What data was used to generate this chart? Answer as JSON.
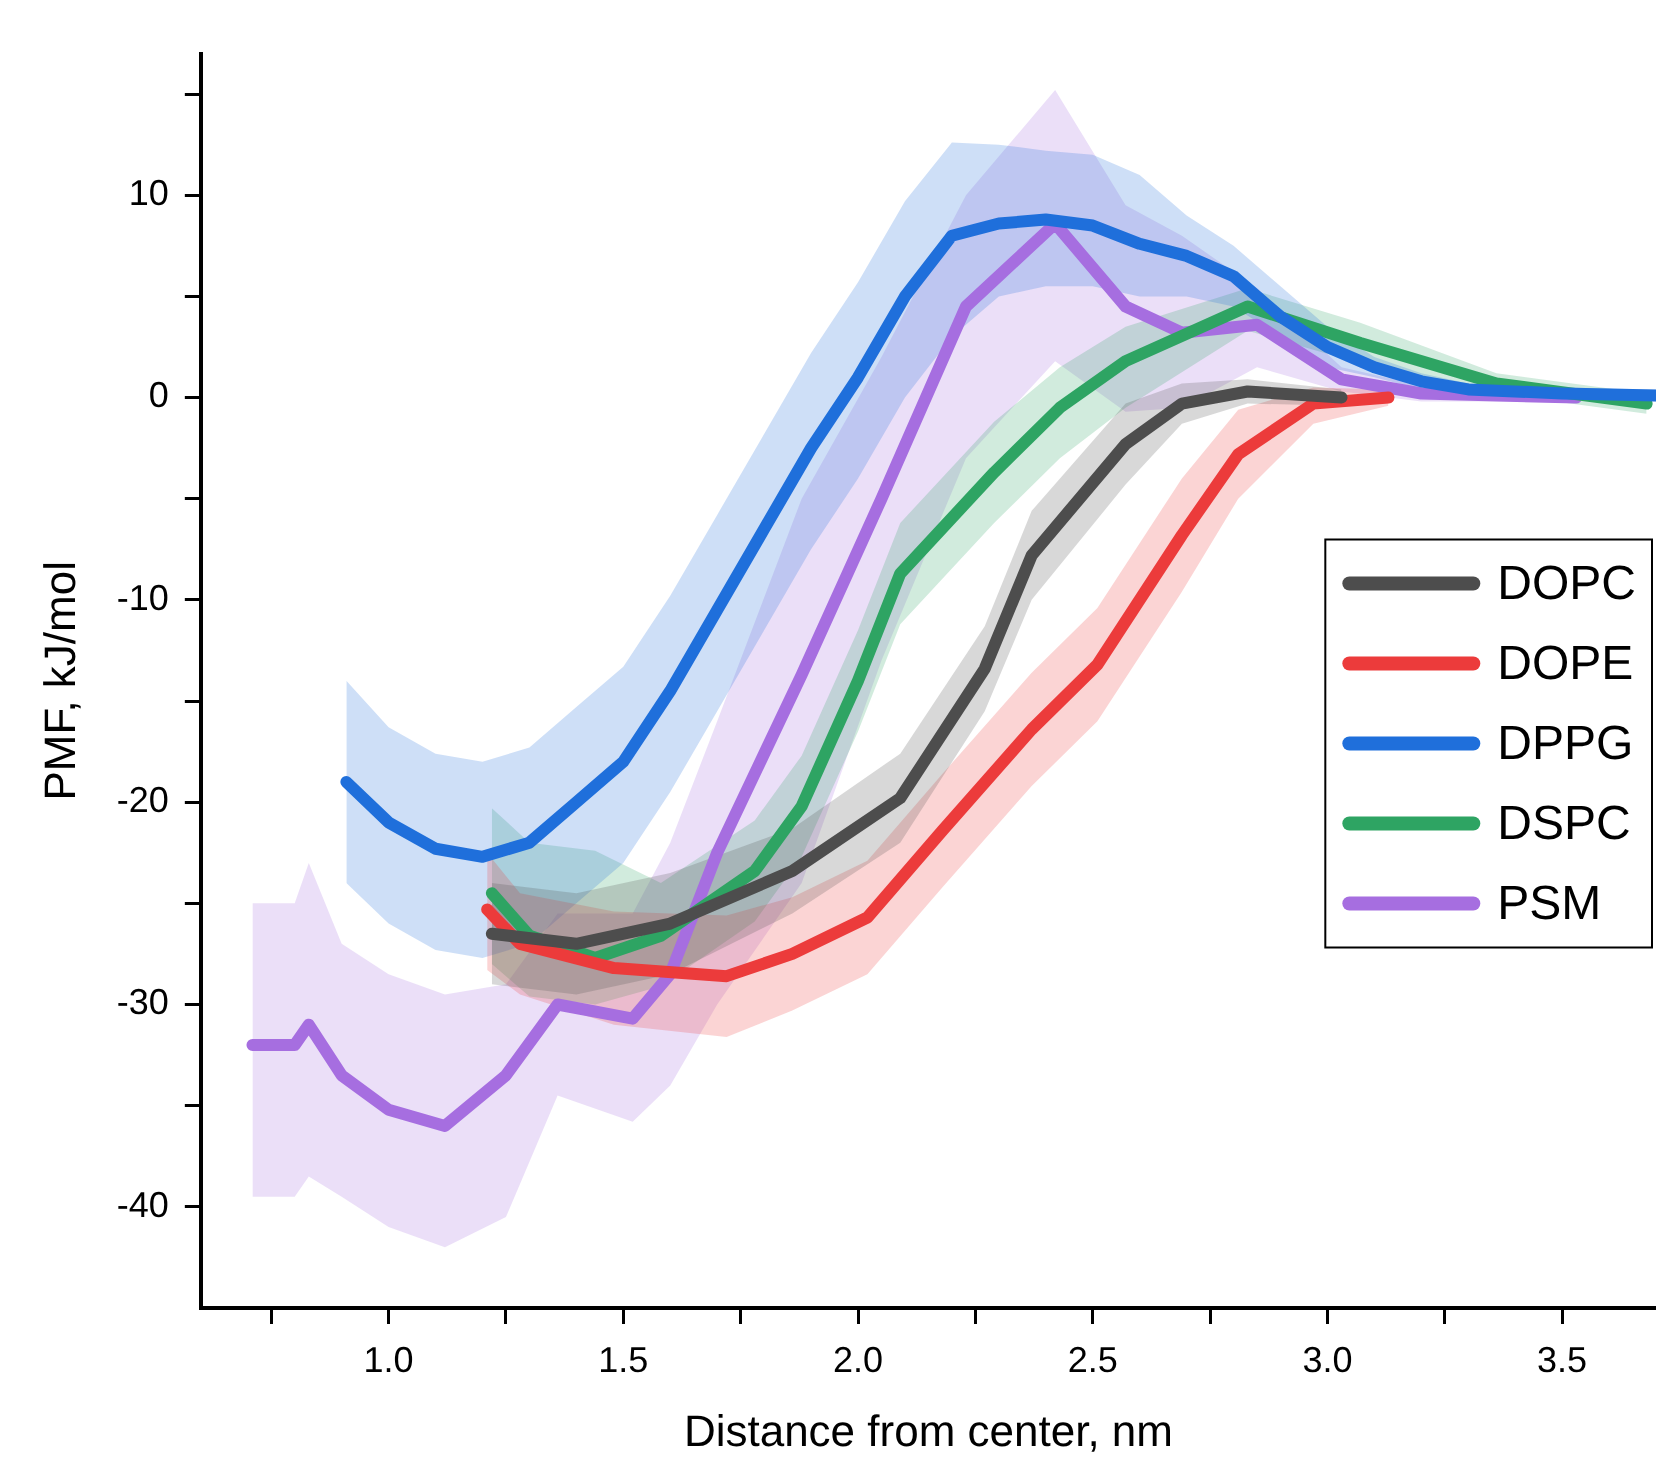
{
  "chart_data": {
    "type": "line",
    "xlabel": "Distance from center, nm",
    "ylabel": "PMF, kJ/mol",
    "xlim": [
      0.6,
      3.7
    ],
    "ylim": [
      -45,
      17
    ],
    "xticks": [
      {
        "value": 0.75,
        "label": null
      },
      {
        "value": 1.0,
        "label": "1.0"
      },
      {
        "value": 1.25,
        "label": null
      },
      {
        "value": 1.5,
        "label": "1.5"
      },
      {
        "value": 1.75,
        "label": null
      },
      {
        "value": 2.0,
        "label": "2.0"
      },
      {
        "value": 2.25,
        "label": null
      },
      {
        "value": 2.5,
        "label": "2.5"
      },
      {
        "value": 2.75,
        "label": null
      },
      {
        "value": 3.0,
        "label": "3.0"
      },
      {
        "value": 3.25,
        "label": null
      },
      {
        "value": 3.5,
        "label": "3.5"
      }
    ],
    "yticks": [
      -40,
      {
        "value": -35,
        "label": null
      },
      -30,
      {
        "value": -25,
        "label": null
      },
      -20,
      {
        "value": -15,
        "label": null
      },
      -10,
      {
        "value": -5,
        "label": null
      },
      0,
      {
        "value": 5,
        "label": null
      },
      10,
      {
        "value": 15,
        "label": null
      }
    ],
    "legend": "right",
    "marker": "none",
    "line_style": "solid",
    "series": [
      {
        "name": "DOPC",
        "color": "#4d4d4d",
        "x": [
          1.22,
          1.4,
          1.6,
          1.86,
          2.09,
          2.27,
          2.37,
          2.57,
          2.69,
          2.83,
          3.03
        ],
        "values": [
          -26.5,
          -27,
          -26,
          -23.4,
          -19.8,
          -13.4,
          -7.8,
          -2.3,
          -0.3,
          0.3,
          0
        ],
        "lower": [
          -29,
          -29.5,
          -28.5,
          -25.5,
          -22,
          -15.5,
          -10,
          -4.3,
          -1.3,
          -0.3,
          -0.4
        ],
        "upper": [
          -24,
          -24.5,
          -23.5,
          -21.3,
          -17.6,
          -11.3,
          -5.6,
          -0.3,
          0.7,
          0.9,
          0.4
        ]
      },
      {
        "name": "DOPE",
        "color": "#ec3b3b",
        "x": [
          1.21,
          1.28,
          1.48,
          1.72,
          1.86,
          2.02,
          2.18,
          2.37,
          2.51,
          2.69,
          2.81,
          2.97,
          3.13
        ],
        "values": [
          -25.3,
          -27,
          -28.2,
          -28.6,
          -27.5,
          -25.7,
          -21.4,
          -16.4,
          -13.2,
          -6.8,
          -2.8,
          -0.3,
          0
        ],
        "lower": [
          -28.3,
          -29.5,
          -31,
          -31.6,
          -30.3,
          -28.5,
          -24.2,
          -19.2,
          -16,
          -9.6,
          -5,
          -1.3,
          -0.4
        ],
        "upper": [
          -22.5,
          -24.5,
          -25.4,
          -25.6,
          -24.7,
          -22.9,
          -18.6,
          -13.6,
          -10.4,
          -4,
          -0.6,
          0.5,
          0.4
        ]
      },
      {
        "name": "DPPG",
        "color": "#1f6fdb",
        "x": [
          0.91,
          1.0,
          1.1,
          1.2,
          1.3,
          1.4,
          1.5,
          1.6,
          1.7,
          1.8,
          1.9,
          2.0,
          2.1,
          2.2,
          2.3,
          2.4,
          2.5,
          2.6,
          2.7,
          2.8,
          2.9,
          3.0,
          3.1,
          3.2,
          3.3,
          3.5,
          3.7
        ],
        "values": [
          -19,
          -21,
          -22.3,
          -22.7,
          -22,
          -20,
          -18,
          -14.5,
          -10.5,
          -6.5,
          -2.5,
          1,
          5,
          8,
          8.6,
          8.8,
          8.5,
          7.6,
          7,
          6,
          4,
          2.5,
          1.5,
          0.8,
          0.4,
          0.2,
          0.1
        ],
        "lower": [
          -24,
          -26,
          -27.3,
          -27.7,
          -27,
          -25,
          -23,
          -19.5,
          -15.5,
          -11.5,
          -7.5,
          -4,
          0,
          3,
          5,
          5.5,
          5.5,
          5,
          5,
          4.5,
          3,
          1.5,
          1,
          0.4,
          0.1,
          -0.1,
          -0.2
        ],
        "upper": [
          -14,
          -16.3,
          -17.6,
          -18,
          -17.3,
          -15.3,
          -13.3,
          -9.8,
          -5.8,
          -1.8,
          2.2,
          5.7,
          9.7,
          12.6,
          12.5,
          12.2,
          12,
          11,
          9,
          7.5,
          5.5,
          3.5,
          2,
          1.2,
          0.7,
          0.5,
          0.4
        ]
      },
      {
        "name": "DSPC",
        "color": "#2ea463",
        "x": [
          1.22,
          1.3,
          1.44,
          1.58,
          1.78,
          1.88,
          2.0,
          2.09,
          2.29,
          2.43,
          2.57,
          2.83,
          3.07,
          3.36,
          3.68
        ],
        "values": [
          -24.5,
          -26.6,
          -27.7,
          -26.6,
          -23.4,
          -20.2,
          -14,
          -8.7,
          -3.7,
          -0.5,
          1.8,
          4.5,
          2.7,
          0.7,
          -0.3
        ],
        "lower": [
          -28,
          -29.6,
          -30,
          -29.1,
          -25.9,
          -22.7,
          -16.5,
          -11.2,
          -6.2,
          -3,
          -0.5,
          3.3,
          1.7,
          0.2,
          -0.8
        ],
        "upper": [
          -20.3,
          -22,
          -22.4,
          -24,
          -20.9,
          -17.7,
          -11.5,
          -6.2,
          -1.2,
          1.5,
          3.5,
          5.4,
          3.7,
          1.2,
          0.2
        ]
      },
      {
        "name": "PSM",
        "color": "#a66ee0",
        "x": [
          0.71,
          0.8,
          0.83,
          0.9,
          1.0,
          1.12,
          1.25,
          1.36,
          1.52,
          1.6,
          1.7,
          1.88,
          2.05,
          2.23,
          2.42,
          2.57,
          2.69,
          2.85,
          3.03,
          3.2,
          3.53
        ],
        "values": [
          -32,
          -32,
          -31,
          -33.5,
          -35.2,
          -36,
          -33.5,
          -30,
          -30.7,
          -28.5,
          -22.5,
          -13.7,
          -5,
          4.5,
          8.6,
          4.5,
          3.2,
          3.6,
          0.9,
          0.2,
          0
        ],
        "lower": [
          -39.5,
          -39.5,
          -38.5,
          -39.5,
          -41,
          -42,
          -40.5,
          -34.5,
          -35.8,
          -34,
          -30,
          -24,
          -13,
          -3,
          1.8,
          -0.7,
          -0.5,
          1.5,
          0.3,
          -0.2,
          -0.2
        ],
        "upper": [
          -25,
          -25,
          -23,
          -27,
          -28.5,
          -29.5,
          -29,
          -25.5,
          -25.5,
          -22,
          -16,
          -5,
          2,
          10,
          15.2,
          9.5,
          8,
          5.4,
          1.5,
          0.6,
          0.2
        ]
      }
    ]
  }
}
